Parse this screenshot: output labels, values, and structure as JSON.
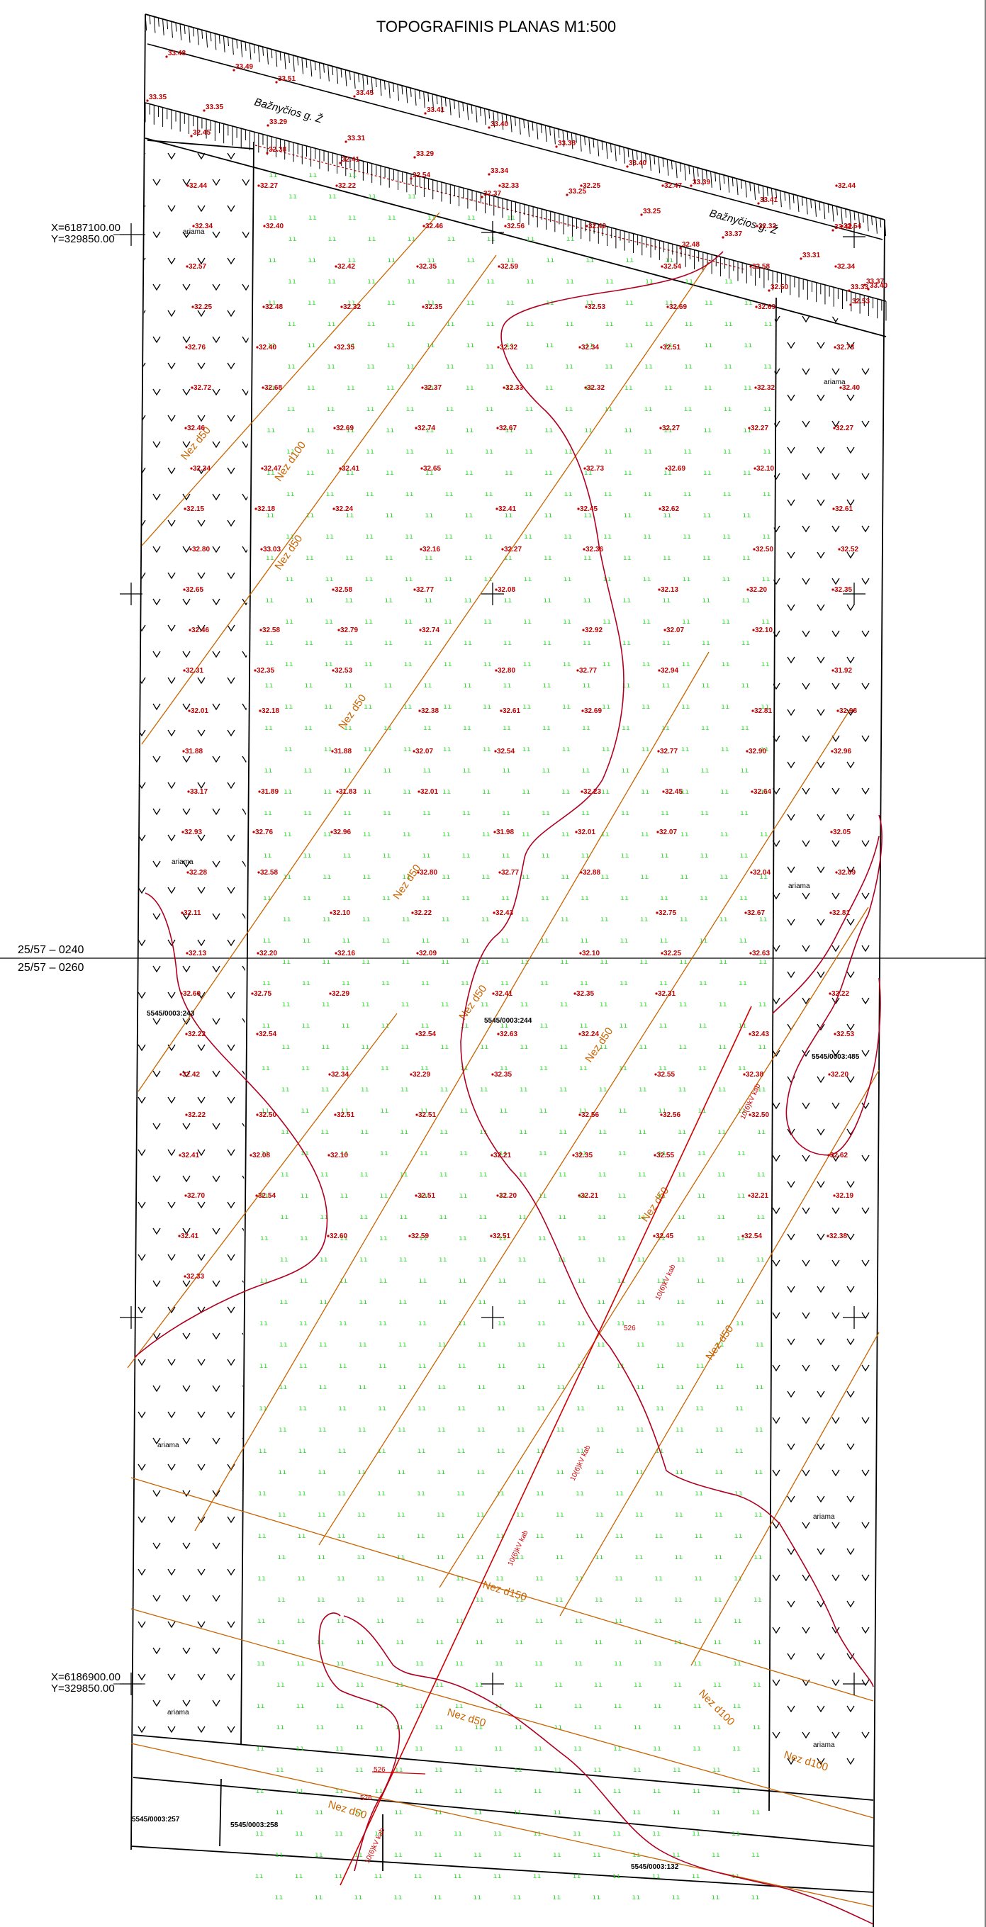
{
  "title": "TOPOGRAFINIS PLANAS M1:500",
  "street_labels": [
    "Bažnyčios g. Ž",
    "Bažnyčios g. Ž"
  ],
  "coord_labels": [
    {
      "x": "X=6187100.00",
      "y": "Y=329850.00"
    },
    {
      "x": "X=6186900.00",
      "y": "Y=329850.00"
    }
  ],
  "sheet_labels": [
    "25/57 – 0240",
    "25/57 – 0260"
  ],
  "arable_label": "ariama",
  "parcel_labels": [
    "5545/0003:243",
    "5545/0003:244",
    "5545/0003:485",
    "5545/0003:257",
    "5545/0003:258",
    "5545/0003:132"
  ],
  "pipe_labels": [
    "Nez d50",
    "Nez d100",
    "Nez d50",
    "Nez d50",
    "Nez d50",
    "Nez d50",
    "Nez d50",
    "Nez d50",
    "Nez d50",
    "Nez d150",
    "Nez d50",
    "Nez d100",
    "Nez d100",
    "Nez d50"
  ],
  "cable_labels": [
    "10(6)kV kab",
    "10(6)kV kab",
    "10(6)kV kab",
    "10(6)kV kab",
    "10(6)kV kab"
  ],
  "point_labels": [
    "526",
    "526",
    "526"
  ],
  "road_elevations": [
    "33.48",
    "33.49",
    "33.51",
    "33.45",
    "33.41",
    "33.40",
    "33.38",
    "33.40",
    "33.39",
    "33.41",
    "33.42",
    "33.35",
    "33.35",
    "33.29",
    "33.31",
    "33.29",
    "33.34",
    "33.25",
    "33.25",
    "33.37",
    "33.31",
    "33.33",
    "33.37",
    "33.40",
    "32.45",
    "32.38",
    "32.41",
    "32.54",
    "32.37",
    "32.48",
    "32.50",
    "32.53"
  ],
  "elevations": [
    "32.44",
    "32.27",
    "32.22",
    "32.33",
    "32.25",
    "32.47",
    "32.44",
    "32.34",
    "32.40",
    "32.46",
    "32.56",
    "32.42",
    "32.32",
    "32.54",
    "32.57",
    "32.42",
    "32.35",
    "32.59",
    "32.54",
    "32.58",
    "32.34",
    "32.25",
    "32.48",
    "32.32",
    "32.35",
    "32.53",
    "32.69",
    "32.69",
    "32.76",
    "32.40",
    "32.35",
    "32.32",
    "32.34",
    "32.51",
    "32.73",
    "32.72",
    "32.68",
    "32.37",
    "32.33",
    "32.32",
    "32.32",
    "32.40",
    "32.46",
    "32.69",
    "32.74",
    "32.67",
    "32.27",
    "32.27",
    "32.27",
    "32.34",
    "32.47",
    "32.41",
    "32.65",
    "32.73",
    "32.69",
    "32.10",
    "32.15",
    "32.18",
    "32.24",
    "32.41",
    "32.45",
    "32.62",
    "32.61",
    "32.80",
    "33.03",
    "32.16",
    "32.27",
    "32.36",
    "32.50",
    "32.52",
    "32.65",
    "32.58",
    "32.77",
    "32.08",
    "32.13",
    "32.20",
    "32.35",
    "32.46",
    "32.58",
    "32.79",
    "32.74",
    "32.92",
    "32.07",
    "32.10",
    "32.31",
    "32.35",
    "32.53",
    "32.80",
    "32.77",
    "32.94",
    "31.92",
    "32.01",
    "32.18",
    "32.38",
    "32.61",
    "32.69",
    "32.81",
    "32.98",
    "31.88",
    "31.88",
    "32.07",
    "32.54",
    "32.77",
    "32.90",
    "32.96",
    "33.17",
    "31.89",
    "31.83",
    "32.01",
    "32.23",
    "32.45",
    "32.64",
    "32.93",
    "32.76",
    "32.96",
    "31.98",
    "32.01",
    "32.07",
    "32.05",
    "32.28",
    "32.58",
    "32.80",
    "32.77",
    "32.88",
    "32.04",
    "32.09",
    "32.11",
    "32.10",
    "32.22",
    "32.43",
    "32.75",
    "32.67",
    "32.81",
    "32.13",
    "32.20",
    "32.16",
    "32.09",
    "32.10",
    "32.25",
    "32.63",
    "32.60",
    "32.75",
    "32.29",
    "32.41",
    "32.35",
    "32.31",
    "32.22",
    "32.22",
    "32.54",
    "32.54",
    "32.63",
    "32.24",
    "32.43",
    "32.53",
    "32.42",
    "32.34",
    "32.29",
    "32.35",
    "32.55",
    "32.38",
    "32.20",
    "32.22",
    "32.50",
    "32.51",
    "32.51",
    "32.56",
    "32.56",
    "32.50",
    "32.41",
    "32.08",
    "32.10",
    "32.21",
    "32.35",
    "32.55",
    "32.62",
    "32.70",
    "32.54",
    "32.51",
    "32.20",
    "32.21",
    "32.21",
    "32.19",
    "32.41",
    "32.60",
    "32.59",
    "32.51",
    "32.45",
    "32.54",
    "32.38",
    "32.33"
  ]
}
